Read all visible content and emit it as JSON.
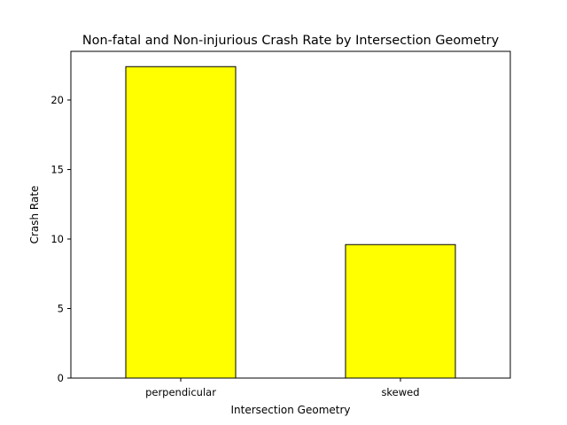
{
  "chart_data": {
    "type": "bar",
    "title": "Non-fatal and Non-injurious Crash Rate by Intersection Geometry",
    "xlabel": "Intersection Geometry",
    "ylabel": "Crash Rate",
    "categories": [
      "perpendicular",
      "skewed"
    ],
    "values": [
      22.4,
      9.6
    ],
    "ylim": [
      0,
      23.5
    ],
    "yticks": [
      0,
      5,
      10,
      15,
      20
    ],
    "grid": false,
    "bar_color": "#ffff00",
    "bar_edge_color": "#000000"
  }
}
